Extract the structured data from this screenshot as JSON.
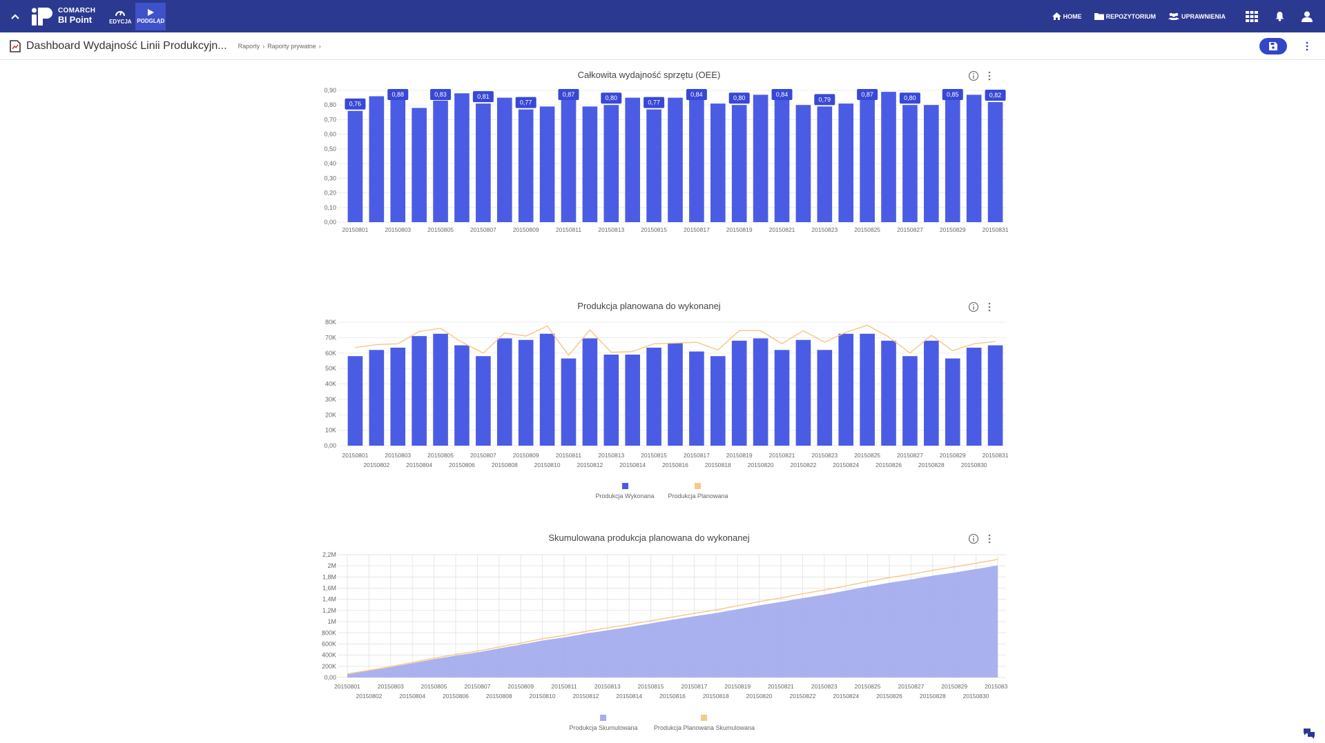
{
  "topbar": {
    "brand_line1": "COMARCH",
    "brand_line2": "BI Point",
    "edit_label": "EDYCJA",
    "preview_label": "PODGLĄD",
    "nav": [
      {
        "label": "HOME",
        "icon": "home-icon"
      },
      {
        "label": "REPOZYTORIUM",
        "icon": "folder-icon"
      },
      {
        "label": "UPRAWNIENIA",
        "icon": "users-icon"
      }
    ],
    "colors": {
      "bar": "#2b3990",
      "active": "#3f51c8"
    }
  },
  "subbar": {
    "title": "Dashboard Wydajność Linii Produkcyjn...",
    "breadcrumb": [
      "Raporty",
      "Raporty prywatne"
    ],
    "separator": "›"
  },
  "charts": {
    "oee_title": "Całkowita wydajność sprzętu (OEE)",
    "prod_title": "Produkcja planowana do wykonanej",
    "cum_title": "Skumulowana produkcja planowana do wykonanej"
  },
  "legends": {
    "prod": [
      "Produkcja Wykonana",
      "Produkcja Planowana"
    ],
    "cum": [
      "Produkcja Skumulowana",
      "Produkcja Planowana Skumulowana"
    ]
  },
  "chart_data": [
    {
      "type": "bar",
      "title": "Całkowita wydajność sprzętu (OEE)",
      "categories": [
        "20150801",
        "20150802",
        "20150803",
        "20150804",
        "20150805",
        "20150806",
        "20150807",
        "20150808",
        "20150809",
        "20150810",
        "20150811",
        "20150812",
        "20150813",
        "20150814",
        "20150815",
        "20150816",
        "20150817",
        "20150818",
        "20150819",
        "20150820",
        "20150821",
        "20150822",
        "20150823",
        "20150824",
        "20150825",
        "20150826",
        "20150827",
        "20150828",
        "20150829",
        "20150830",
        "20150831"
      ],
      "values": [
        0.76,
        0.86,
        0.88,
        0.78,
        0.83,
        0.88,
        0.81,
        0.85,
        0.77,
        0.79,
        0.87,
        0.79,
        0.8,
        0.85,
        0.77,
        0.85,
        0.84,
        0.81,
        0.8,
        0.87,
        0.84,
        0.8,
        0.79,
        0.81,
        0.87,
        0.89,
        0.8,
        0.8,
        0.85,
        0.87,
        0.82
      ],
      "data_labels": [
        "0,76",
        null,
        "0,88",
        null,
        "0,83",
        null,
        "0,81",
        null,
        "0,77",
        null,
        "0,87",
        null,
        "0,80",
        null,
        "0,77",
        null,
        "0,84",
        null,
        "0,80",
        null,
        "0,84",
        null,
        "0,79",
        null,
        "0,87",
        null,
        "0,80",
        null,
        "0,85",
        null,
        "0,82"
      ],
      "ylim": [
        0,
        0.9
      ],
      "yticks": [
        "0,00",
        "0,10",
        "0,20",
        "0,30",
        "0,40",
        "0,50",
        "0,60",
        "0,70",
        "0,80",
        "0,90"
      ],
      "color": "#4b5ce4",
      "grid": true
    },
    {
      "type": "bar",
      "title": "Produkcja planowana do wykonanej",
      "categories": [
        "20150801",
        "20150802",
        "20150803",
        "20150804",
        "20150805",
        "20150806",
        "20150807",
        "20150808",
        "20150809",
        "20150810",
        "20150811",
        "20150812",
        "20150813",
        "20150814",
        "20150815",
        "20150816",
        "20150817",
        "20150818",
        "20150819",
        "20150820",
        "20150821",
        "20150822",
        "20150823",
        "20150824",
        "20150825",
        "20150826",
        "20150827",
        "20150828",
        "20150829",
        "20150830",
        "20150831"
      ],
      "series": [
        {
          "name": "Produkcja Wykonana",
          "type": "bar",
          "color": "#4b5ce4",
          "values": [
            58000,
            62000,
            63500,
            71000,
            72500,
            65000,
            58000,
            69500,
            68500,
            72500,
            56500,
            69500,
            59000,
            59000,
            63500,
            66500,
            61000,
            58000,
            68000,
            69500,
            62000,
            68500,
            62000,
            72500,
            72500,
            68000,
            58000,
            68000,
            56500,
            63500,
            65000
          ]
        },
        {
          "name": "Produkcja Planowana",
          "type": "line",
          "color": "#f8c98a",
          "values": [
            63500,
            65500,
            66000,
            74000,
            76000,
            67000,
            60000,
            73000,
            71000,
            77500,
            58500,
            75000,
            60500,
            61000,
            66000,
            66500,
            67000,
            62000,
            74500,
            74500,
            66000,
            74500,
            67000,
            73500,
            78000,
            70500,
            60000,
            71500,
            61500,
            66000,
            67500
          ]
        }
      ],
      "ylim": [
        0,
        80000
      ],
      "yticks": [
        "0,00",
        "10K",
        "20K",
        "30K",
        "40K",
        "50K",
        "60K",
        "70K",
        "80K"
      ],
      "legend": "bottom"
    },
    {
      "type": "area",
      "title": "Skumulowana produkcja planowana do wykonanej",
      "categories": [
        "20150801",
        "20150802",
        "20150803",
        "20150804",
        "20150805",
        "20150806",
        "20150807",
        "20150808",
        "20150809",
        "20150810",
        "20150811",
        "20150812",
        "20150813",
        "20150814",
        "20150815",
        "20150816",
        "20150817",
        "20150818",
        "20150819",
        "20150820",
        "20150821",
        "20150822",
        "20150823",
        "20150824",
        "20150825",
        "20150826",
        "20150827",
        "20150828",
        "20150829",
        "20150830",
        "20150831"
      ],
      "series": [
        {
          "name": "Produkcja Skumulowana",
          "type": "area",
          "color": "#a5adee",
          "values": [
            58000,
            120000,
            183500,
            254500,
            327000,
            392000,
            450000,
            519500,
            588000,
            660500,
            717000,
            786500,
            845500,
            904500,
            968000,
            1034500,
            1095500,
            1153500,
            1221500,
            1291000,
            1353000,
            1421500,
            1483500,
            1556000,
            1628500,
            1696500,
            1754500,
            1822500,
            1879000,
            1942500,
            2007500
          ]
        },
        {
          "name": "Produkcja Planowana Skumulowana",
          "type": "line",
          "color": "#f8c98a",
          "values": [
            63500,
            129000,
            195000,
            269000,
            345000,
            412000,
            472000,
            545000,
            616000,
            693500,
            752000,
            827000,
            887500,
            948500,
            1014500,
            1081000,
            1148000,
            1210000,
            1284500,
            1359000,
            1425000,
            1499500,
            1566500,
            1640000,
            1718000,
            1788500,
            1848500,
            1920000,
            1981500,
            2047500,
            2115000
          ]
        }
      ],
      "ylim": [
        0,
        2200000
      ],
      "yticks": [
        "0,00",
        "200K",
        "400K",
        "600K",
        "800K",
        "1M",
        "1,2M",
        "1,4M",
        "1,6M",
        "1,8M",
        "2M",
        "2,2M"
      ],
      "legend": "bottom",
      "grid": true
    }
  ]
}
